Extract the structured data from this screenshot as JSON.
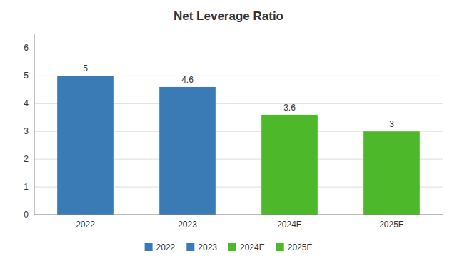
{
  "chart_data": {
    "type": "bar",
    "title": "Net Leverage Ratio",
    "categories": [
      "2022",
      "2023",
      "2024E",
      "2025E"
    ],
    "values": [
      5,
      4.6,
      3.6,
      3
    ],
    "colors": [
      "#3a7ab5",
      "#3a7ab5",
      "#4db82a",
      "#4db82a"
    ],
    "ylim": [
      0,
      6.5
    ],
    "yticks": [
      0,
      1,
      2,
      3,
      4,
      5,
      6
    ],
    "grid": true,
    "data_labels": true,
    "legend": "bottom"
  }
}
